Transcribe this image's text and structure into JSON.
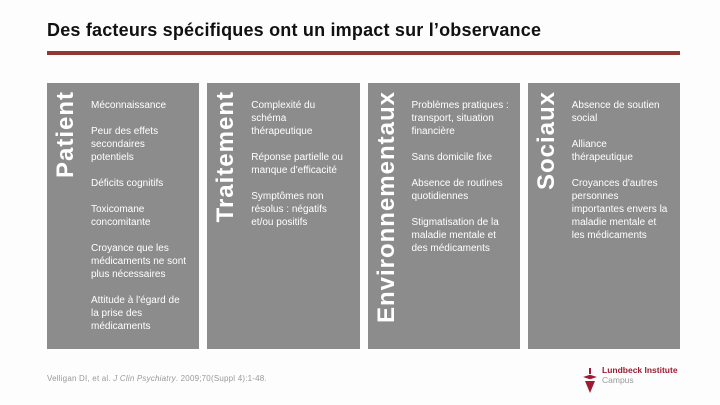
{
  "slide": {
    "title": "Des facteurs spécifiques ont un impact sur l’observance"
  },
  "columns": [
    {
      "label": "Patient",
      "items": [
        "Méconnaissance",
        "Peur des effets\nsecondaires\npotentiels",
        "Déficits cognitifs",
        "Toxicomane\nconcomitante",
        "Croyance que les\nmédicaments ne sont\nplus nécessaires",
        "Attitude à l'égard de\nla prise des\nmédicaments"
      ]
    },
    {
      "label": "Traitement",
      "items": [
        "Complexité du\nschéma\nthérapeutique",
        "Réponse partielle ou\nmanque d'efficacité",
        "Symptômes non\nrésolus : négatifs\net/ou positifs"
      ]
    },
    {
      "label": "Environnementaux",
      "items": [
        "Problèmes pratiques :\ntransport, situation\nfinancière",
        "Sans domicile fixe",
        "Absence de routines\nquotidiennes",
        "Stigmatisation de la\nmaladie mentale et\ndes médicaments"
      ]
    },
    {
      "label": "Sociaux",
      "items": [
        "Absence de soutien\nsocial",
        "Alliance\nthérapeutique",
        "Croyances d'autres\npersonnes\nimportantes envers la\nmaladie mentale et\nles médicaments"
      ]
    }
  ],
  "footer": {
    "citation_prefix": "Velligan DI, et al. ",
    "citation_journal": "J Clin Psychiatry",
    "citation_suffix": ". 2009;70(Suppl 4):1-48.",
    "logo_line1": "Lundbeck Institute",
    "logo_line2": "Campus"
  },
  "colors": {
    "accent_red": "#943634",
    "logo_red": "#9d1b33",
    "box_gray": "#8c8c8c",
    "text_white": "#ffffff",
    "citation_gray": "#9a9a9a"
  }
}
